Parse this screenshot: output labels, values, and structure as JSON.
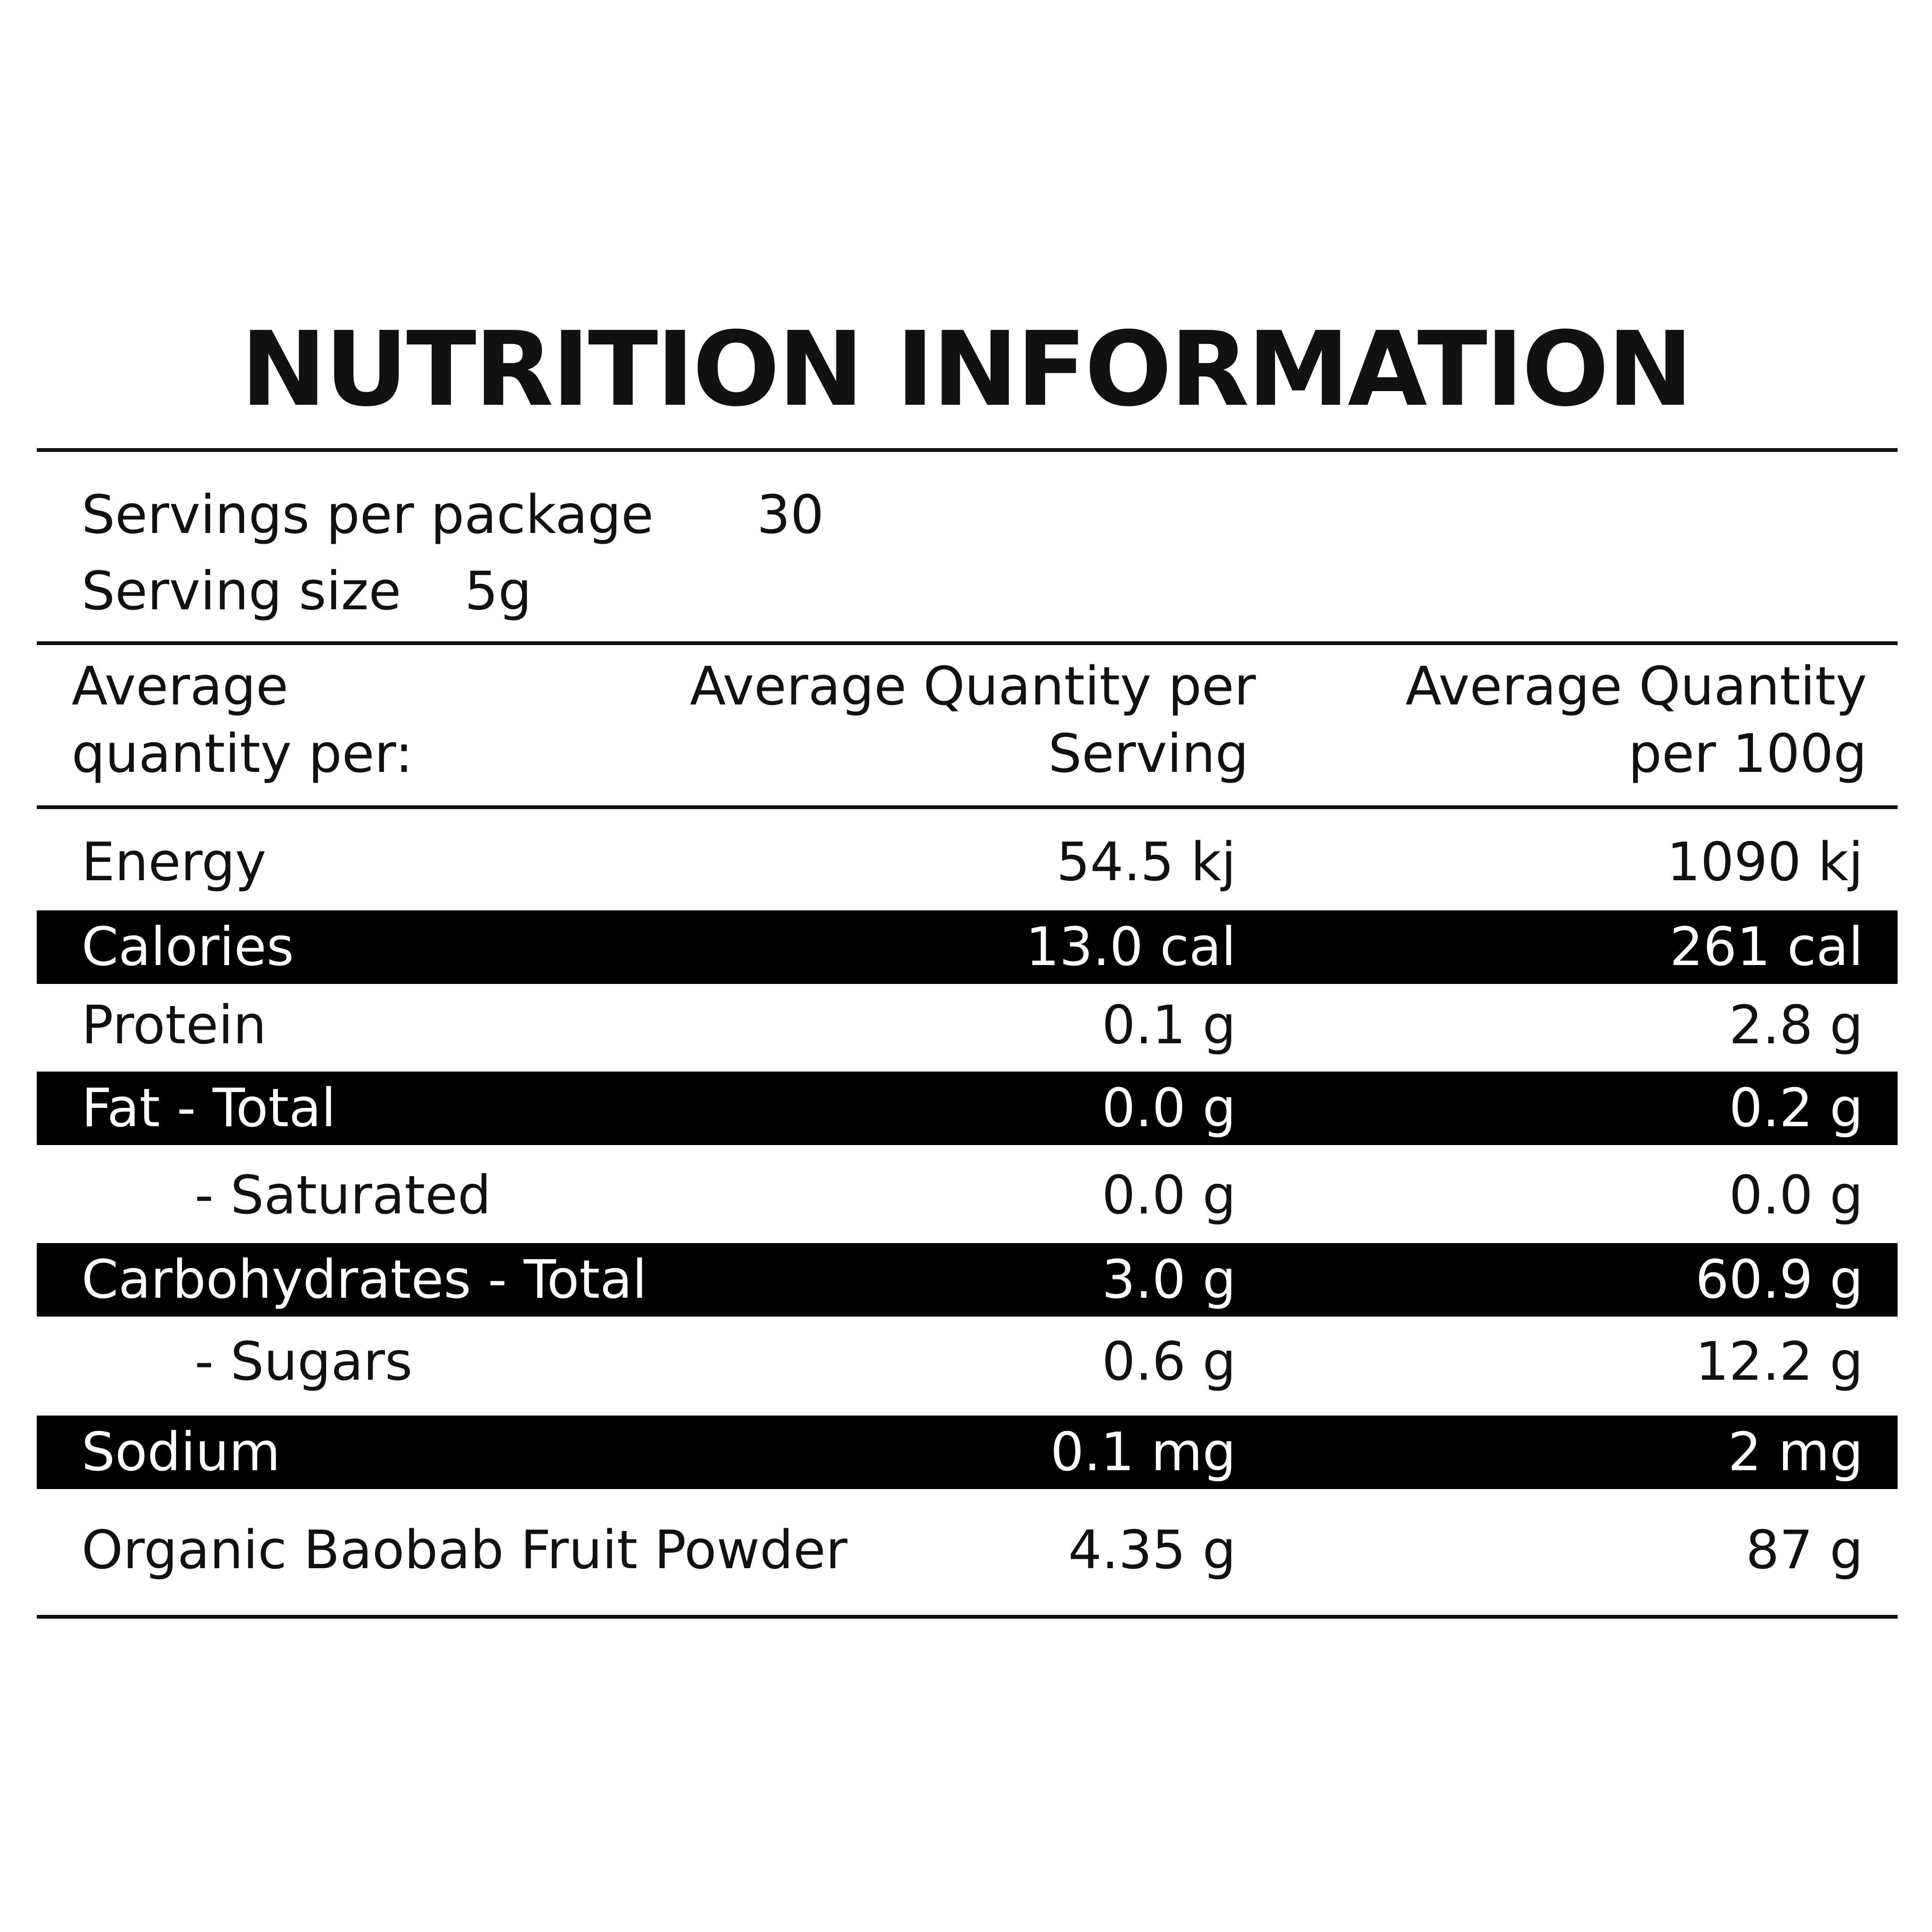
{
  "title": "NUTRITION INFORMATION",
  "servings": [
    {
      "label": "Servings per package",
      "value": "30"
    },
    {
      "label": "Serving size",
      "value": "5g"
    }
  ],
  "table": {
    "header": [
      [
        "Average",
        "quantity per:"
      ],
      [
        "Average Quantity per",
        "Serving"
      ],
      [
        "Average Quantity",
        "per 100g"
      ]
    ],
    "rows": [
      {
        "name": "Energy",
        "per_serving": "54.5 kj",
        "per_100g": "1090 kj",
        "dark": false,
        "indent": false
      },
      {
        "name": "Calories",
        "per_serving": "13.0 cal",
        "per_100g": "261 cal",
        "dark": true,
        "indent": false
      },
      {
        "name": "Protein",
        "per_serving": "0.1 g",
        "per_100g": "2.8 g",
        "dark": false,
        "indent": false
      },
      {
        "name": "Fat - Total",
        "per_serving": "0.0 g",
        "per_100g": "0.2 g",
        "dark": true,
        "indent": false
      },
      {
        "name": "- Saturated",
        "per_serving": "0.0 g",
        "per_100g": "0.0 g",
        "dark": false,
        "indent": true
      },
      {
        "name": "Carbohydrates - Total",
        "per_serving": "3.0 g",
        "per_100g": "60.9 g",
        "dark": true,
        "indent": false
      },
      {
        "name": "- Sugars",
        "per_serving": "0.6 g",
        "per_100g": "12.2 g",
        "dark": false,
        "indent": true
      },
      {
        "name": "Sodium",
        "per_serving": "0.1 mg",
        "per_100g": "2 mg",
        "dark": true,
        "indent": false
      },
      {
        "name": "Organic Baobab Fruit Powder",
        "per_serving": "4.35 g",
        "per_100g": "87 g",
        "dark": false,
        "indent": false
      }
    ]
  }
}
